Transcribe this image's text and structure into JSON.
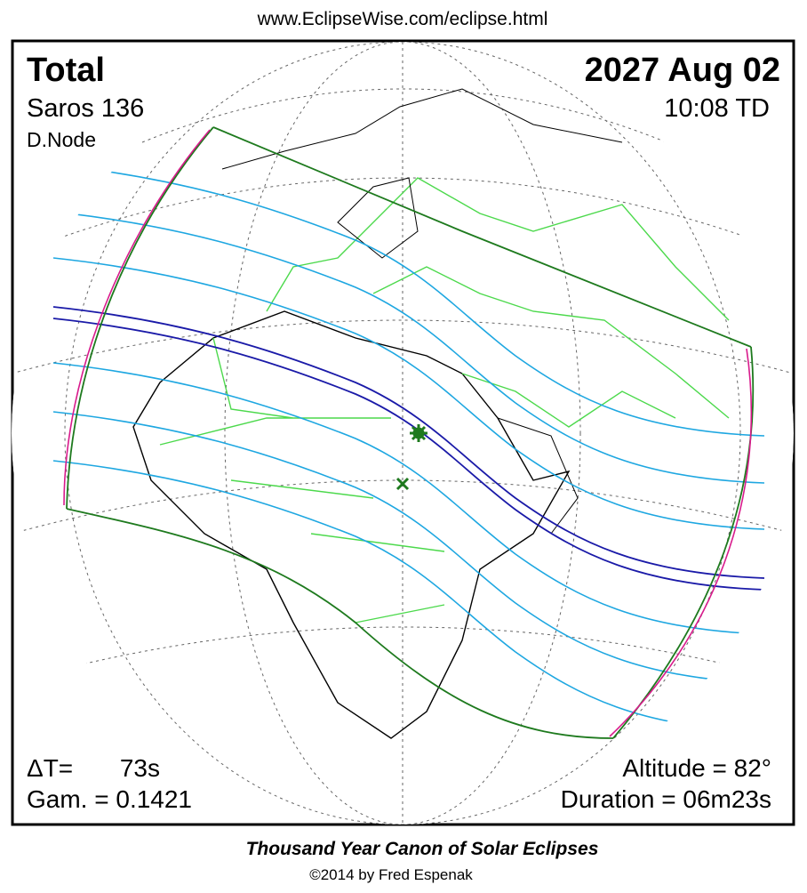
{
  "header": {
    "url": "www.EclipseWise.com/eclipse.html"
  },
  "top_left": {
    "type": "Total",
    "saros": "Saros 136",
    "node": "D.Node"
  },
  "top_right": {
    "date": "2027 Aug 02",
    "time": "10:08 TD"
  },
  "bottom_left": {
    "delta_t_label": "ΔT=",
    "delta_t_value": "73s",
    "gamma": "Gam. = 0.1421"
  },
  "bottom_right": {
    "altitude": "Altitude = 82°",
    "duration": "Duration = 06m23s"
  },
  "footer": {
    "title": "Thousand Year Canon of Solar Eclipses",
    "copyright": "©2014 by Fred Espenak"
  }
}
